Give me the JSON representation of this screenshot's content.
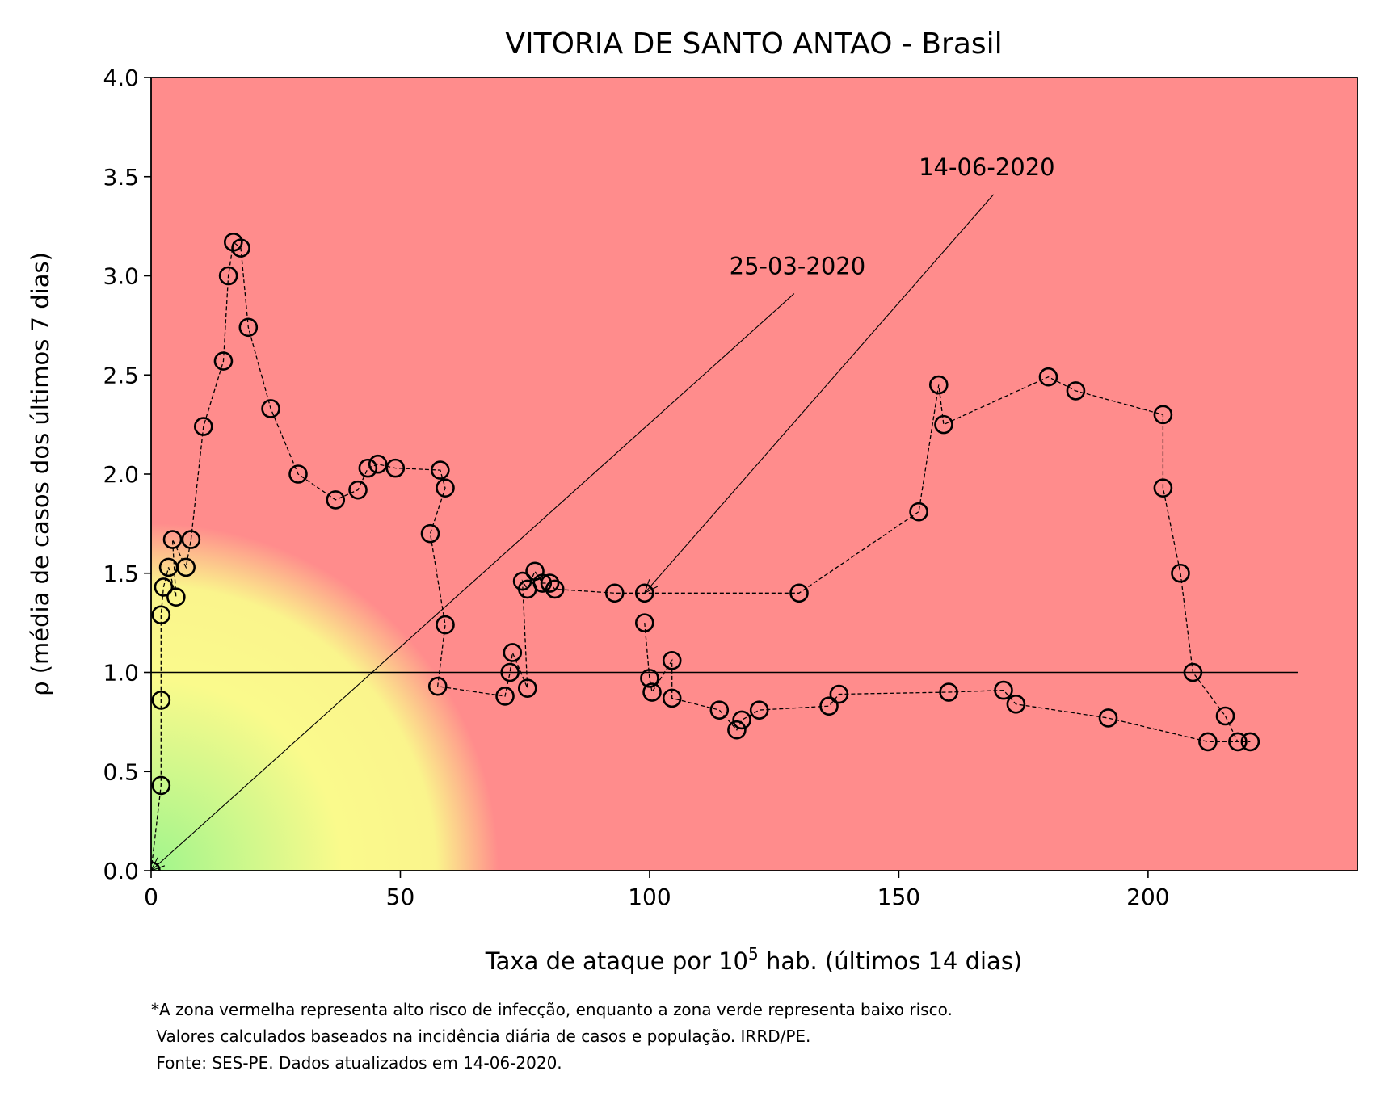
{
  "chart_data": {
    "type": "scatter",
    "title": "VITORIA DE SANTO ANTAO - Brasil",
    "xlabel": {
      "prefix": "Taxa de ataque por 10",
      "sup": "5",
      "suffix": " hab. (últimos 14 dias)"
    },
    "ylabel": "ρ (média de casos dos últimos 7 dias)",
    "xlim": [
      0,
      242
    ],
    "ylim": [
      0,
      4.0
    ],
    "xticks": [
      "0",
      "50",
      "100",
      "150",
      "200"
    ],
    "yticks": [
      "0.0",
      "0.5",
      "1.0",
      "1.5",
      "2.0",
      "2.5",
      "3.0",
      "3.5",
      "4.0"
    ],
    "grid": false,
    "legend": "none",
    "reference_line": {
      "y": 1.0,
      "x_range": [
        0,
        230
      ]
    },
    "colors": {
      "high_risk": "#ff8c8c",
      "medium_risk": "#fafa8c",
      "low_risk": "#a8f58c",
      "line": "#000000"
    },
    "annotations": [
      {
        "text": "25-03-2020",
        "text_x": 116,
        "text_y": 3.0,
        "arrow_from_x": 129,
        "arrow_from_y": 2.91,
        "point_x": 0,
        "point_y": 0
      },
      {
        "text": "14-06-2020",
        "text_x": 154,
        "text_y": 3.5,
        "arrow_from_x": 169,
        "arrow_from_y": 3.41,
        "point_x": 99,
        "point_y": 1.4
      }
    ],
    "series": [
      {
        "x": [
          0,
          2,
          2,
          2,
          2.5,
          3.5,
          5,
          4.3,
          7,
          8,
          10.5,
          14.5,
          15.5,
          16.5,
          18,
          19.5,
          24,
          29.5,
          37,
          41.5,
          43.5,
          45.5,
          49,
          58,
          59,
          56,
          59,
          57.5,
          71,
          72,
          72.5,
          75.5,
          74.5,
          75.5,
          77,
          78.5,
          80,
          81,
          93,
          99,
          130,
          154,
          158,
          159,
          180,
          185.5,
          203,
          203,
          206.5,
          209,
          215.5,
          218,
          220.5,
          212,
          192,
          173.5,
          171,
          160,
          138,
          136,
          122,
          118.5,
          117.5,
          114,
          104.5,
          104.5,
          100.5,
          100,
          99
        ],
        "y": [
          0,
          0.43,
          0.86,
          1.29,
          1.43,
          1.53,
          1.38,
          1.67,
          1.53,
          1.67,
          2.24,
          2.57,
          3.0,
          3.17,
          3.14,
          2.74,
          2.33,
          2.0,
          1.87,
          1.92,
          2.03,
          2.05,
          2.03,
          2.02,
          1.93,
          1.7,
          1.24,
          0.93,
          0.88,
          1.0,
          1.1,
          0.92,
          1.46,
          1.42,
          1.51,
          1.45,
          1.45,
          1.42,
          1.4,
          1.4,
          1.4,
          1.81,
          2.45,
          2.25,
          2.49,
          2.42,
          2.3,
          1.93,
          1.5,
          1.0,
          0.78,
          0.65,
          0.65,
          0.65,
          0.77,
          0.84,
          0.91,
          0.9,
          0.89,
          0.83,
          0.81,
          0.76,
          0.71,
          0.81,
          0.87,
          1.06,
          0.9,
          0.97,
          1.25
        ]
      }
    ],
    "footnote": [
      "*A zona vermelha representa alto risco de infecção, enquanto a zona verde representa baixo risco.",
      " Valores calculados baseados na incidência diária de casos e população. IRRD/PE.",
      " Fonte: SES-PE. Dados atualizados em 14-06-2020."
    ]
  }
}
